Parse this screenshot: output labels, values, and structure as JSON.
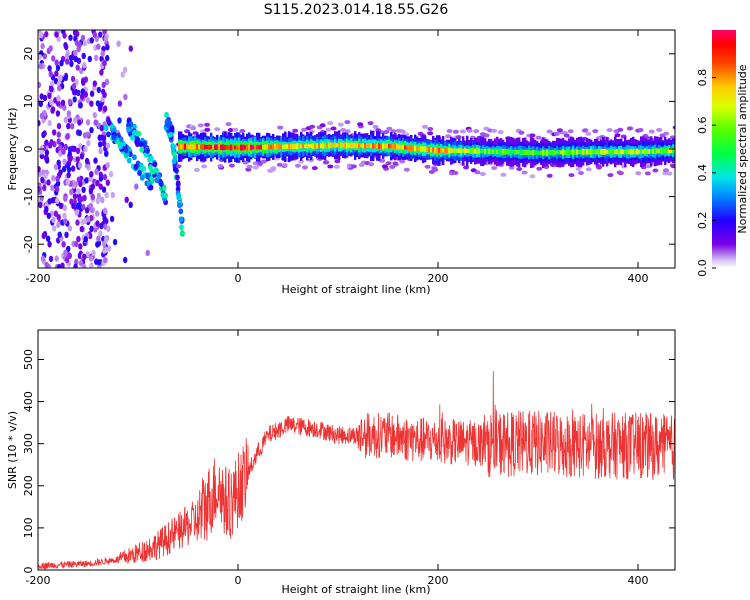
{
  "title": "S115.2023.014.18.55.G26",
  "colorbar": {
    "label": "Normalized spectral amplitude",
    "ticks": [
      "0.0",
      "0.2",
      "0.4",
      "0.6",
      "0.8"
    ],
    "tick_values": [
      0.0,
      0.2,
      0.4,
      0.6,
      0.8
    ],
    "range": [
      0,
      1
    ]
  },
  "chart_data": [
    {
      "type": "heatmap",
      "xlabel": "Height of straight line (km)",
      "ylabel": "Frequency (Hz)",
      "xlim": [
        -200,
        437
      ],
      "ylim": [
        -25,
        25
      ],
      "xticks": [
        -200,
        0,
        200,
        400
      ],
      "xtick_labels": [
        "-200",
        "0",
        "200",
        "400"
      ],
      "yticks": [
        -20,
        -10,
        0,
        10,
        20
      ],
      "ytick_labels": [
        "-20",
        "-10",
        "0",
        "10",
        "20"
      ],
      "zrange": [
        0,
        1
      ],
      "ridge": {
        "x": [
          -60,
          0,
          50,
          100,
          150,
          200,
          250,
          300,
          350,
          400,
          437
        ],
        "y": [
          0.5,
          0.3,
          0.5,
          0.8,
          0.6,
          -0.3,
          -0.5,
          -0.8,
          -0.6,
          -0.6,
          -0.3
        ],
        "amplitude": [
          0.85,
          0.95,
          0.75,
          0.7,
          0.8,
          0.75,
          0.55,
          0.55,
          0.6,
          0.6,
          0.6
        ]
      },
      "distortion_x_range": [
        -150,
        -60
      ]
    },
    {
      "type": "line",
      "xlabel": "Height of straight line (km)",
      "ylabel": "SNR (10 * v/v)",
      "xlim": [
        -200,
        437
      ],
      "ylim": [
        0,
        570
      ],
      "xticks": [
        -200,
        0,
        200,
        400
      ],
      "xtick_labels": [
        "-200",
        "0",
        "200",
        "400"
      ],
      "yticks": [
        0,
        100,
        200,
        300,
        400,
        500
      ],
      "ytick_labels": [
        "0",
        "100",
        "200",
        "300",
        "400",
        "500"
      ],
      "color": "#ee3333",
      "x": [
        -200,
        -150,
        -120,
        -100,
        -80,
        -60,
        -40,
        -30,
        -20,
        -10,
        0,
        10,
        20,
        30,
        50,
        80,
        100,
        150,
        175,
        200,
        250,
        300,
        350,
        400,
        437
      ],
      "y": [
        10,
        15,
        25,
        40,
        60,
        90,
        120,
        160,
        200,
        150,
        190,
        230,
        280,
        320,
        345,
        335,
        320,
        320,
        310,
        305,
        300,
        300,
        295,
        295,
        290
      ]
    }
  ]
}
